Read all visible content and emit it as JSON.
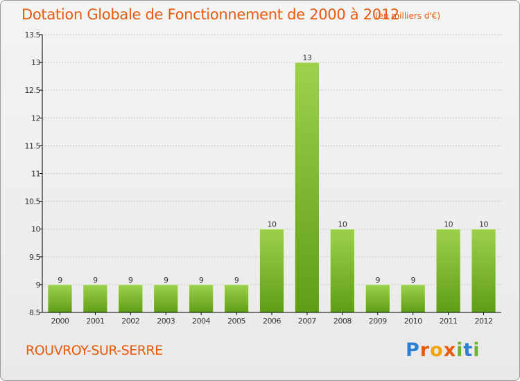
{
  "header": {
    "title": "Dotation Globale de Fonctionnement de 2000 à 2012",
    "unit": "(en milliers d'€)"
  },
  "commune": "ROUVROY-SUR-SERRE",
  "logo": {
    "text": "Proxiti",
    "letters": [
      {
        "char": "P",
        "color": "#2b7fd4"
      },
      {
        "char": "r",
        "color": "#e8590c"
      },
      {
        "char": "o",
        "color": "#f0a30a"
      },
      {
        "char": "x",
        "color": "#e8590c"
      },
      {
        "char": "i",
        "color": "#6bb32e"
      },
      {
        "char": "t",
        "color": "#2b7fd4"
      },
      {
        "char": "i",
        "color": "#6bb32e"
      }
    ]
  },
  "colors": {
    "bar_top": "#9dd14c",
    "bar_bottom": "#5f9e14",
    "title": "#e8590c",
    "axis": "#000000",
    "grid": "#c8c8c8"
  },
  "chart_data": {
    "type": "bar",
    "title": "Dotation Globale de Fonctionnement de 2000 à 2012",
    "subtitle": "(en milliers d'€)",
    "categories": [
      "2000",
      "2001",
      "2002",
      "2003",
      "2004",
      "2005",
      "2006",
      "2007",
      "2008",
      "2009",
      "2010",
      "2011",
      "2012"
    ],
    "values": [
      9,
      9,
      9,
      9,
      9,
      9,
      10,
      13,
      10,
      9,
      9,
      10,
      10
    ],
    "data_labels": [
      "9",
      "9",
      "9",
      "9",
      "9",
      "9",
      "10",
      "13",
      "10",
      "9",
      "9",
      "10",
      "10"
    ],
    "ylim": [
      8.5,
      13.5
    ],
    "yticks": [
      8.5,
      9,
      9.5,
      10,
      10.5,
      11,
      11.5,
      12,
      12.5,
      13,
      13.5
    ],
    "ytick_labels": [
      "8.5",
      "9",
      "9.5",
      "10",
      "10.5",
      "11",
      "11.5",
      "12",
      "12.5",
      "13",
      "13.5"
    ],
    "grid": true,
    "legend": false
  }
}
